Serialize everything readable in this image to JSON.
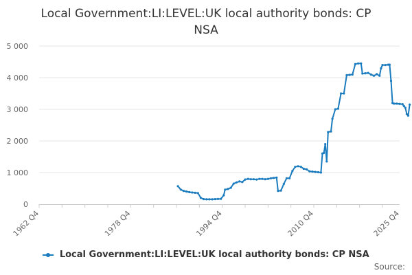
{
  "chart_data": {
    "type": "line",
    "title": "Local Government:LI:LEVEL:UK local authority bonds: CP NSA",
    "source": "Source:",
    "series": [
      {
        "name": "Local Government:LI:LEVEL:UK local authority bonds: CP NSA",
        "color": "#1a7bbf",
        "points": [
          [
            1987.0,
            570
          ],
          [
            1987.5,
            460
          ],
          [
            1988.0,
            420
          ],
          [
            1988.5,
            400
          ],
          [
            1989.0,
            380
          ],
          [
            1989.5,
            370
          ],
          [
            1990.0,
            360
          ],
          [
            1990.5,
            350
          ],
          [
            1991.0,
            200
          ],
          [
            1991.5,
            160
          ],
          [
            1992.0,
            155
          ],
          [
            1992.5,
            155
          ],
          [
            1993.0,
            155
          ],
          [
            1993.5,
            160
          ],
          [
            1994.0,
            165
          ],
          [
            1994.5,
            170
          ],
          [
            1995.0,
            280
          ],
          [
            1995.25,
            460
          ],
          [
            1995.75,
            480
          ],
          [
            1996.25,
            520
          ],
          [
            1996.75,
            650
          ],
          [
            1997.25,
            690
          ],
          [
            1997.75,
            720
          ],
          [
            1998.25,
            700
          ],
          [
            1998.75,
            780
          ],
          [
            1999.25,
            800
          ],
          [
            1999.75,
            790
          ],
          [
            2000.25,
            790
          ],
          [
            2000.75,
            780
          ],
          [
            2001.25,
            800
          ],
          [
            2001.75,
            800
          ],
          [
            2002.25,
            790
          ],
          [
            2002.75,
            800
          ],
          [
            2003.25,
            820
          ],
          [
            2003.75,
            830
          ],
          [
            2004.25,
            840
          ],
          [
            2004.5,
            420
          ],
          [
            2005.0,
            430
          ],
          [
            2005.5,
            640
          ],
          [
            2006.0,
            820
          ],
          [
            2006.5,
            820
          ],
          [
            2007.0,
            1050
          ],
          [
            2007.5,
            1180
          ],
          [
            2008.0,
            1200
          ],
          [
            2008.5,
            1180
          ],
          [
            2009.0,
            1120
          ],
          [
            2009.5,
            1100
          ],
          [
            2010.0,
            1040
          ],
          [
            2010.5,
            1030
          ],
          [
            2011.0,
            1020
          ],
          [
            2011.5,
            1010
          ],
          [
            2012.0,
            1000
          ],
          [
            2012.25,
            1600
          ],
          [
            2012.5,
            1620
          ],
          [
            2012.75,
            1900
          ],
          [
            2013.0,
            1350
          ],
          [
            2013.25,
            2280
          ],
          [
            2013.75,
            2300
          ],
          [
            2014.0,
            2700
          ],
          [
            2014.5,
            3000
          ],
          [
            2015.0,
            3020
          ],
          [
            2015.5,
            3500
          ],
          [
            2016.0,
            3500
          ],
          [
            2016.5,
            4080
          ],
          [
            2017.0,
            4090
          ],
          [
            2017.5,
            4100
          ],
          [
            2018.0,
            4430
          ],
          [
            2018.5,
            4450
          ],
          [
            2019.0,
            4450
          ],
          [
            2019.25,
            4130
          ],
          [
            2019.75,
            4140
          ],
          [
            2020.25,
            4150
          ],
          [
            2020.75,
            4100
          ],
          [
            2021.25,
            4060
          ],
          [
            2021.75,
            4110
          ],
          [
            2022.25,
            4060
          ],
          [
            2022.5,
            4300
          ],
          [
            2022.75,
            4400
          ],
          [
            2023.25,
            4400
          ],
          [
            2023.75,
            4410
          ],
          [
            2024.0,
            4410
          ],
          [
            2024.25,
            3900
          ],
          [
            2024.5,
            3200
          ],
          [
            2024.75,
            3180
          ],
          [
            2025.25,
            3180
          ],
          [
            2025.75,
            3170
          ],
          [
            2026.25,
            3160
          ],
          [
            2026.5,
            3100
          ],
          [
            2026.75,
            3050
          ],
          [
            2027.0,
            2850
          ],
          [
            2027.25,
            2800
          ],
          [
            2027.5,
            3150
          ]
        ]
      }
    ],
    "x_ticks": [
      {
        "label": "1962 Q4",
        "value": 1962.75
      },
      {
        "label": "1978 Q4",
        "value": 1978.75
      },
      {
        "label": "1994 Q4",
        "value": 1994.75
      },
      {
        "label": "2010 Q4",
        "value": 2010.75
      },
      {
        "label": "2025 Q4",
        "value": 2025.75
      }
    ],
    "y_ticks": [
      {
        "label": "0",
        "value": 0
      },
      {
        "label": "1 000",
        "value": 1000
      },
      {
        "label": "2 000",
        "value": 2000
      },
      {
        "label": "3 000",
        "value": 3000
      },
      {
        "label": "4 000",
        "value": 4000
      },
      {
        "label": "5 000",
        "value": 5000
      }
    ],
    "xlim": [
      1962.75,
      2025.75
    ],
    "ylim": [
      0,
      5000
    ],
    "grid": true,
    "legend_position": "bottom"
  }
}
